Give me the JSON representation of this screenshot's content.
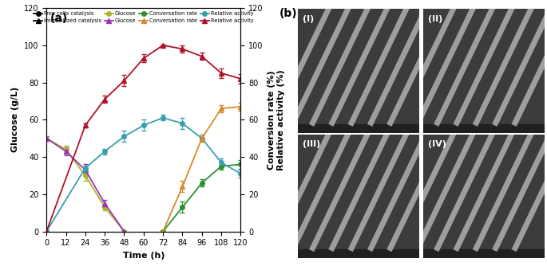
{
  "chart_data": {
    "type": "line",
    "panel_label": "(a)",
    "xlabel": "Time (h)",
    "ylabel": "Glucose (g/L)",
    "y2label": [
      "Conversion rate (%)",
      "Relative activity (%)"
    ],
    "xlim": [
      0,
      120
    ],
    "xticks": [
      0,
      12,
      24,
      36,
      48,
      60,
      72,
      84,
      96,
      108,
      120
    ],
    "ylim": [
      0,
      120
    ],
    "yticks": [
      0,
      20,
      40,
      60,
      80,
      100,
      120
    ],
    "y2lim": [
      0,
      120
    ],
    "y2ticks": [
      0,
      20,
      40,
      60,
      80,
      100,
      120
    ],
    "legend": "upper center",
    "legend_headers": [
      {
        "name": "Free cells catalysis",
        "marker": "circle"
      },
      {
        "name": "Immobilized catalysis",
        "marker": "triangle"
      }
    ],
    "series": [
      {
        "name": "Glucose",
        "group": "Free cells catalysis",
        "color": "#a9b526",
        "marker": "circle",
        "axis": "y",
        "x": [
          0,
          12,
          24,
          36,
          48
        ],
        "values": [
          50,
          44,
          30,
          13,
          0
        ],
        "errors": [
          1,
          2,
          3,
          1.5,
          0.5
        ]
      },
      {
        "name": "Conversation rate",
        "group": "Free cells catalysis",
        "color": "#2f8f2f",
        "marker": "circle",
        "axis": "y2",
        "x": [
          72,
          84,
          96,
          108,
          120
        ],
        "values": [
          0,
          13,
          26,
          35,
          36
        ],
        "errors": [
          0.5,
          3,
          2,
          2,
          2.5
        ]
      },
      {
        "name": "Relative activity",
        "group": "Free cells catalysis",
        "color": "#3a9fae",
        "marker": "circle",
        "axis": "y2",
        "x": [
          0,
          24,
          36,
          48,
          60,
          72,
          84,
          96,
          108,
          120
        ],
        "values": [
          0,
          34,
          43,
          51,
          57,
          61,
          58,
          50,
          37,
          31
        ],
        "errors": [
          0.5,
          1.5,
          1.5,
          3,
          3,
          1.5,
          3,
          2,
          2,
          2
        ]
      },
      {
        "name": "Glucose",
        "group": "Immobilized catalysis",
        "color": "#9b35b5",
        "marker": "triangle",
        "axis": "y",
        "x": [
          0,
          12,
          24,
          36,
          48
        ],
        "values": [
          50,
          43,
          33,
          15,
          0
        ],
        "errors": [
          1,
          2,
          3,
          2,
          0.5
        ]
      },
      {
        "name": "Conversation rate",
        "group": "Immobilized catalysis",
        "color": "#d98a2a",
        "marker": "triangle",
        "axis": "y2",
        "x": [
          72,
          84,
          96,
          108,
          120
        ],
        "values": [
          0,
          24,
          50,
          66,
          67
        ],
        "errors": [
          0.5,
          3,
          2,
          2,
          2
        ]
      },
      {
        "name": "Relative activity",
        "group": "Immobilized catalysis",
        "color": "#b0122a",
        "marker": "triangle",
        "axis": "y2",
        "x": [
          0,
          24,
          36,
          48,
          60,
          72,
          84,
          96,
          108,
          120
        ],
        "values": [
          0,
          57,
          71,
          81,
          93,
          100,
          98,
          94,
          85,
          82
        ],
        "errors": [
          0.5,
          1,
          2,
          3,
          2,
          0.5,
          2,
          2,
          2.5,
          2.5
        ]
      }
    ]
  },
  "images": {
    "label": "(b)",
    "panels": [
      "(I)",
      "(II)",
      "(III)",
      "(IV)"
    ]
  }
}
